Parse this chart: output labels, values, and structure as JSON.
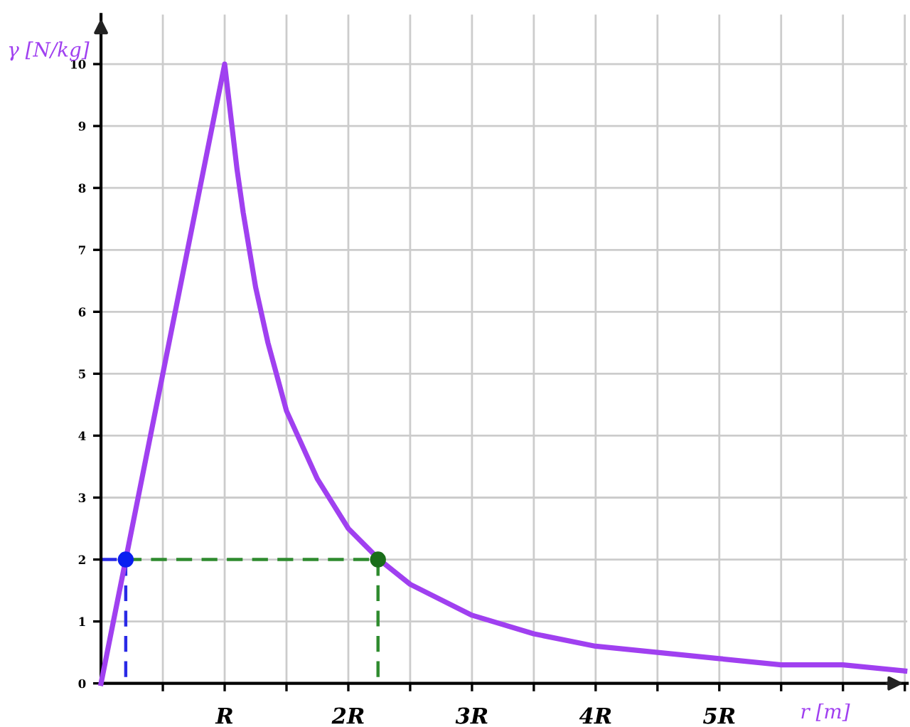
{
  "chart_data": {
    "type": "line",
    "xlabel": "r [m]",
    "ylabel": "γ [N/kg]",
    "xlim": [
      0,
      6.52
    ],
    "ylim": [
      0,
      10.8
    ],
    "xticks": [
      {
        "value": 0.5,
        "label": null
      },
      {
        "value": 1,
        "label": "R"
      },
      {
        "value": 1.5,
        "label": null
      },
      {
        "value": 2,
        "label": "2R"
      },
      {
        "value": 2.5,
        "label": null
      },
      {
        "value": 3,
        "label": "3R"
      },
      {
        "value": 3.5,
        "label": null
      },
      {
        "value": 4,
        "label": "4R"
      },
      {
        "value": 4.5,
        "label": null
      },
      {
        "value": 5,
        "label": "5R"
      },
      {
        "value": 5.5,
        "label": null
      },
      {
        "value": 6,
        "label": null
      },
      {
        "value": 6.5,
        "label": null
      }
    ],
    "yticks": [
      0,
      1,
      2,
      3,
      4,
      5,
      6,
      7,
      8,
      9,
      10
    ],
    "grid": true,
    "legend": false,
    "series": [
      {
        "color": "#a040f0",
        "marker": "none",
        "line_style": "solid",
        "x": [
          0,
          1,
          1.1,
          1.15,
          1.25,
          1.35,
          1.5,
          1.75,
          2,
          2.25,
          2.5,
          3,
          3.5,
          4,
          4.5,
          5,
          5.5,
          6,
          6.5
        ],
        "values": [
          0,
          10,
          8.3,
          7.6,
          6.4,
          5.5,
          4.4,
          3.3,
          2.5,
          2.0,
          1.6,
          1.1,
          0.8,
          0.6,
          0.5,
          0.4,
          0.3,
          0.3,
          0.2
        ]
      },
      {
        "color": "#2a2ae6",
        "marker": "none",
        "line_style": "dashed",
        "x": [
          0,
          0.2,
          0.2
        ],
        "values": [
          2,
          2,
          0
        ]
      },
      {
        "color": "#2e8b2e",
        "marker": "none",
        "line_style": "dashed",
        "x": [
          0.2,
          2.24,
          2.24
        ],
        "values": [
          2,
          2,
          0
        ]
      },
      {
        "type": "scatter",
        "color": "#0a1ef0",
        "marker": "circle",
        "x": [
          0.2
        ],
        "values": [
          2
        ]
      },
      {
        "type": "scatter",
        "color": "#1a6e1a",
        "marker": "circle",
        "x": [
          2.24
        ],
        "values": [
          2
        ]
      }
    ]
  }
}
